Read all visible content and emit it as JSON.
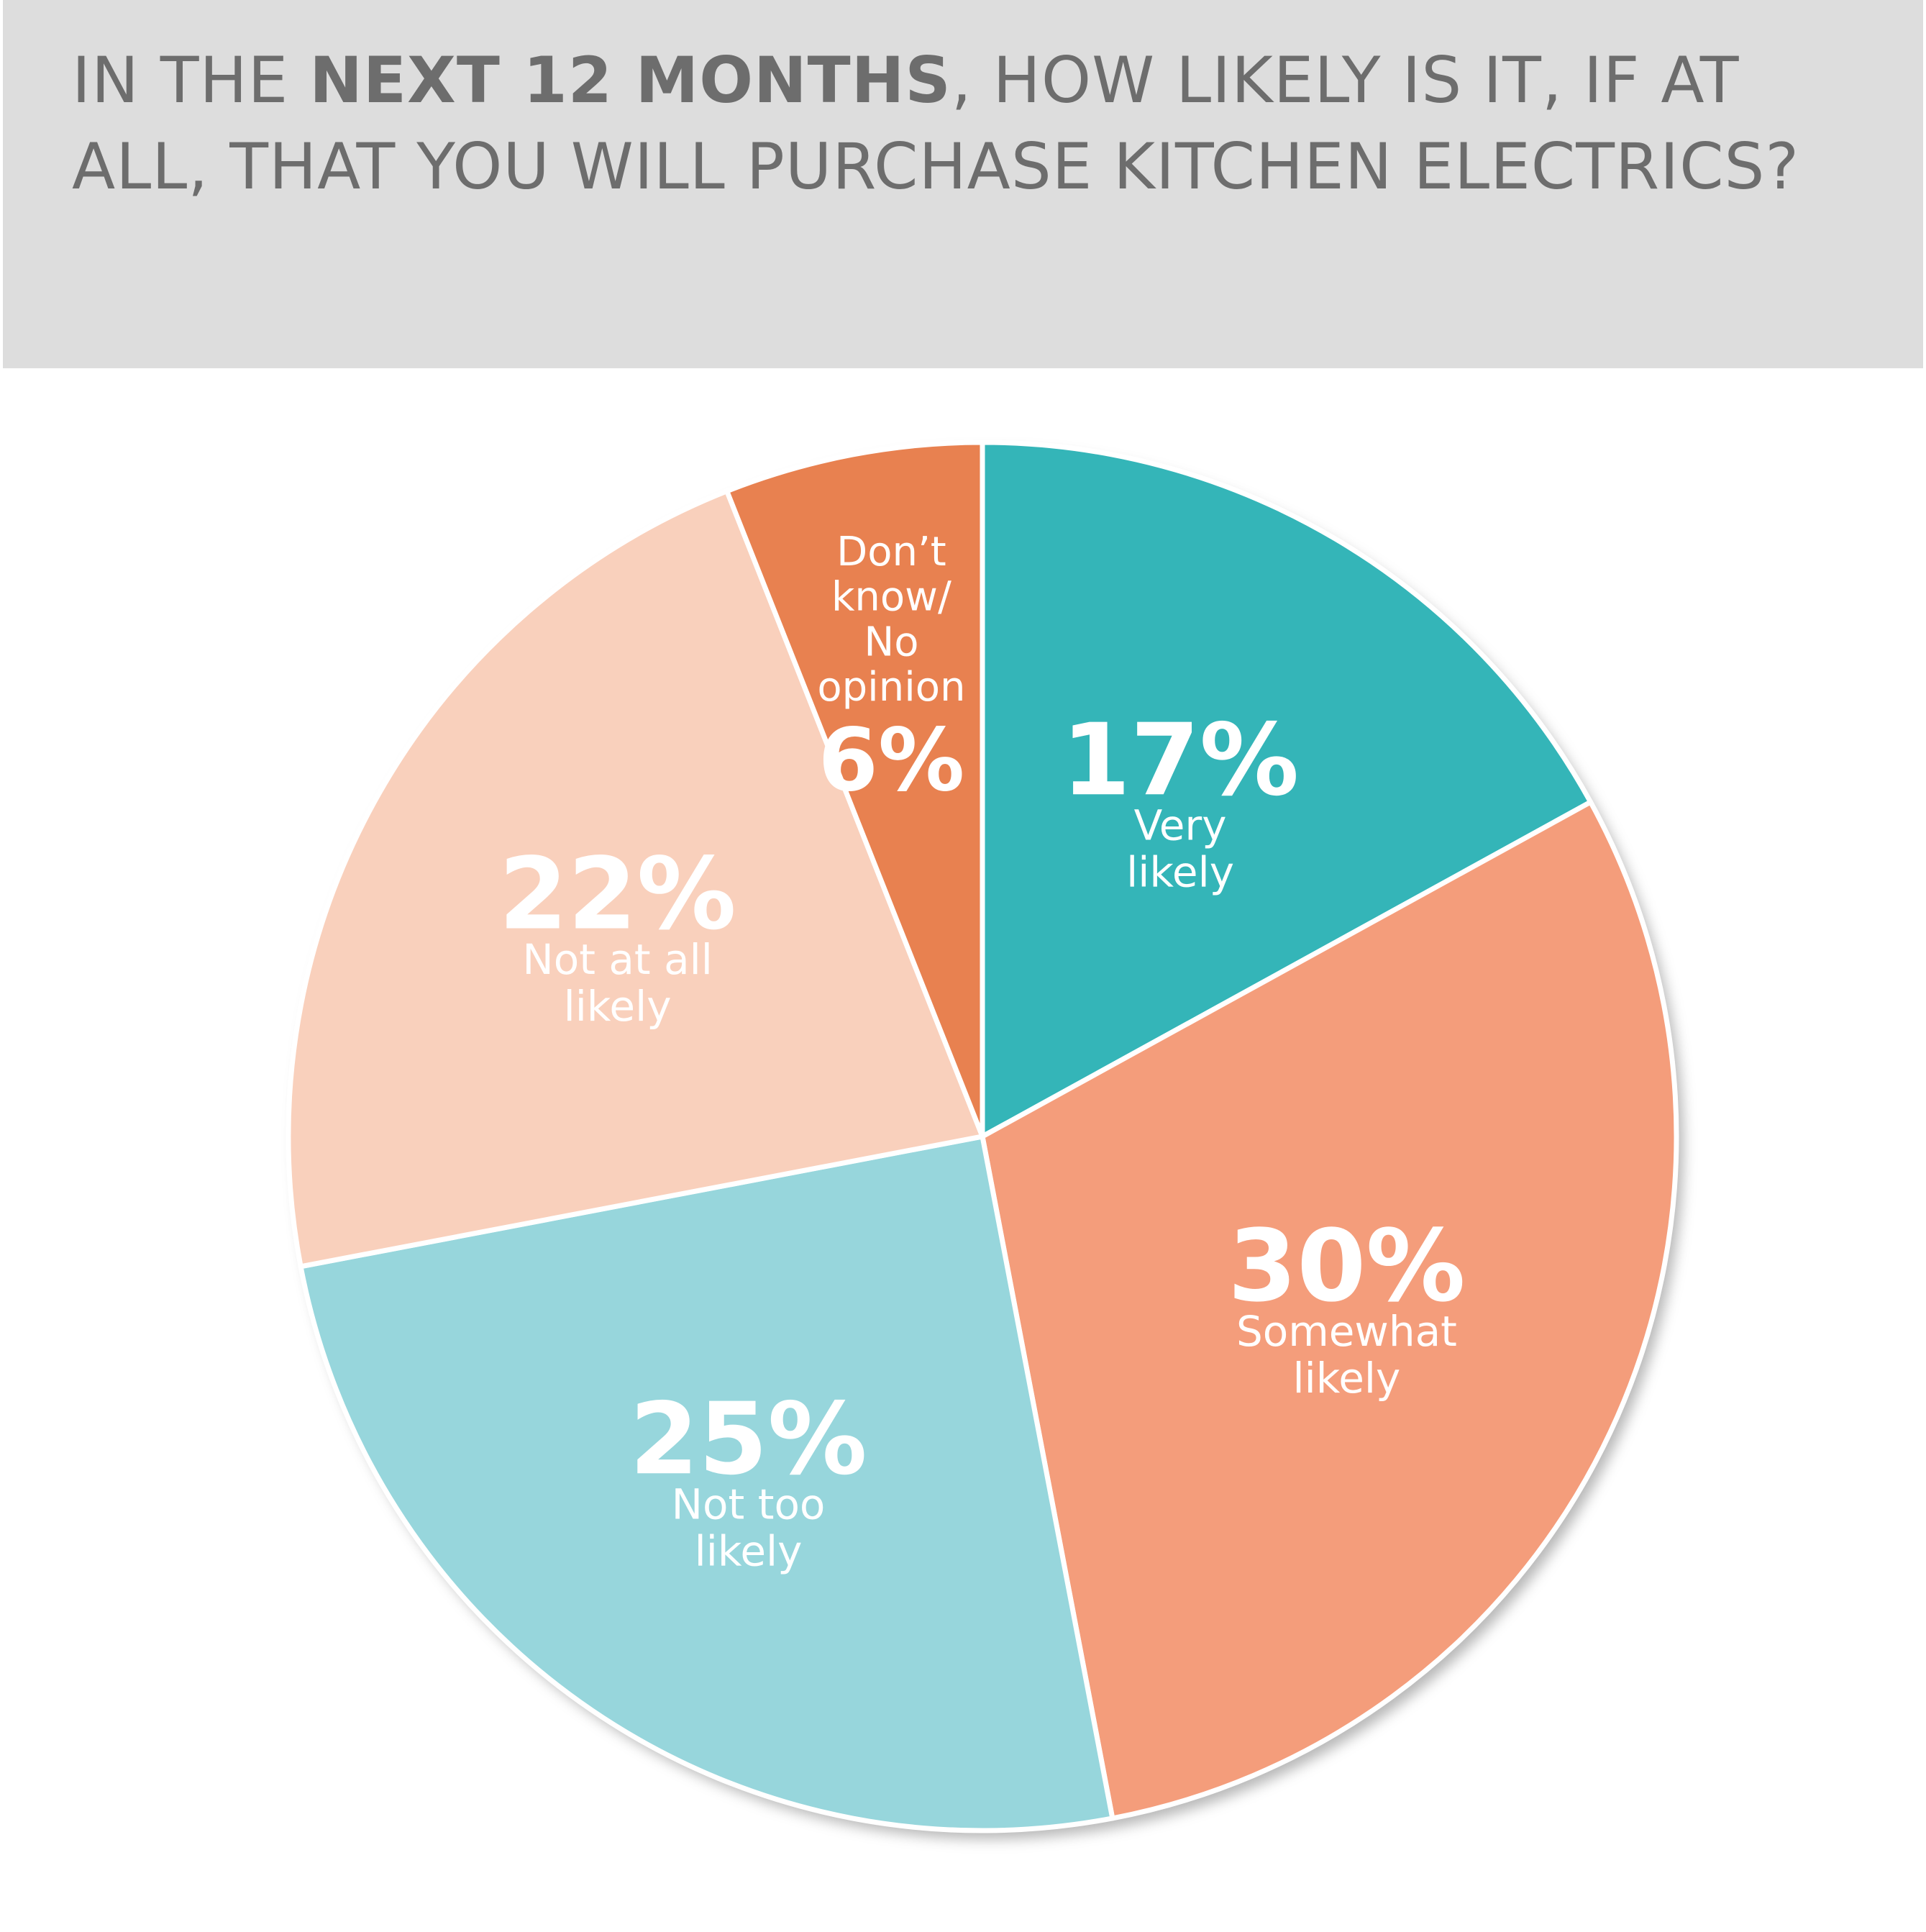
{
  "title": {
    "part1": "IN THE ",
    "bold": "NEXT 12 MONTHS",
    "part2": ", HOW LIKELY IS IT, IF AT ALL, THAT YOU WILL PURCHASE KITCHEN ELECTRICS?"
  },
  "chart_data": {
    "type": "pie",
    "title": "IN THE NEXT 12 MONTHS, HOW LIKELY IS IT, IF AT ALL, THAT YOU WILL PURCHASE KITCHEN ELECTRICS?",
    "start": "top (12 o'clock), clockwise",
    "slices": [
      {
        "label": "Very likely",
        "label_lines": [
          "Very",
          "likely"
        ],
        "value": 17,
        "value_label": "17%",
        "color": "#34b5b8"
      },
      {
        "label": "Somewhat likely",
        "label_lines": [
          "Somewhat",
          "likely"
        ],
        "value": 30,
        "value_label": "30%",
        "color": "#f49d7b"
      },
      {
        "label": "Not too likely",
        "label_lines": [
          "Not too",
          "likely"
        ],
        "value": 25,
        "value_label": "25%",
        "color": "#97d6dc"
      },
      {
        "label": "Not at all likely",
        "label_lines": [
          "Not at all",
          "likely"
        ],
        "value": 22,
        "value_label": "22%",
        "color": "#f9d0bc"
      },
      {
        "label": "Don’t know/ No opinion",
        "label_lines": [
          "Don’t",
          "know/",
          "No",
          "opinion"
        ],
        "value": 6,
        "value_label": "6%",
        "color": "#e88150"
      }
    ]
  }
}
